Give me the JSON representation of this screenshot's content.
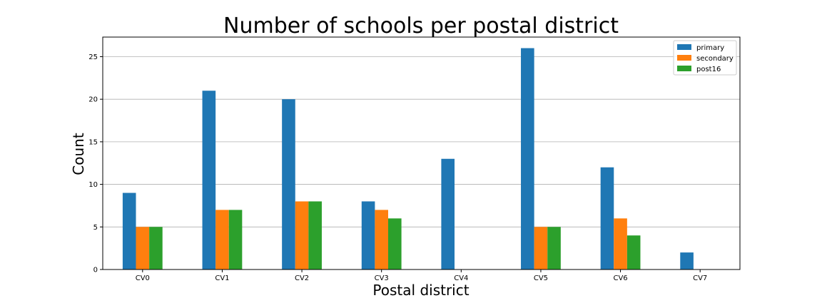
{
  "chart_data": {
    "type": "bar",
    "title": "Number of schools per postal district",
    "xlabel": "Postal district",
    "ylabel": "Count",
    "categories": [
      "CV0",
      "CV1",
      "CV2",
      "CV3",
      "CV4",
      "CV5",
      "CV6",
      "CV7"
    ],
    "series": [
      {
        "name": "primary",
        "color": "#1f77b4",
        "values": [
          9,
          21,
          20,
          8,
          13,
          26,
          12,
          2
        ]
      },
      {
        "name": "secondary",
        "color": "#ff7f0e",
        "values": [
          5,
          7,
          8,
          7,
          0,
          5,
          6,
          0
        ]
      },
      {
        "name": "post16",
        "color": "#2ca02c",
        "values": [
          5,
          7,
          8,
          6,
          0,
          5,
          4,
          0
        ]
      }
    ],
    "ylim": [
      0,
      27.3
    ],
    "yticks": [
      0,
      5,
      10,
      15,
      20,
      25
    ],
    "grid": "y",
    "legend": "top-right"
  }
}
